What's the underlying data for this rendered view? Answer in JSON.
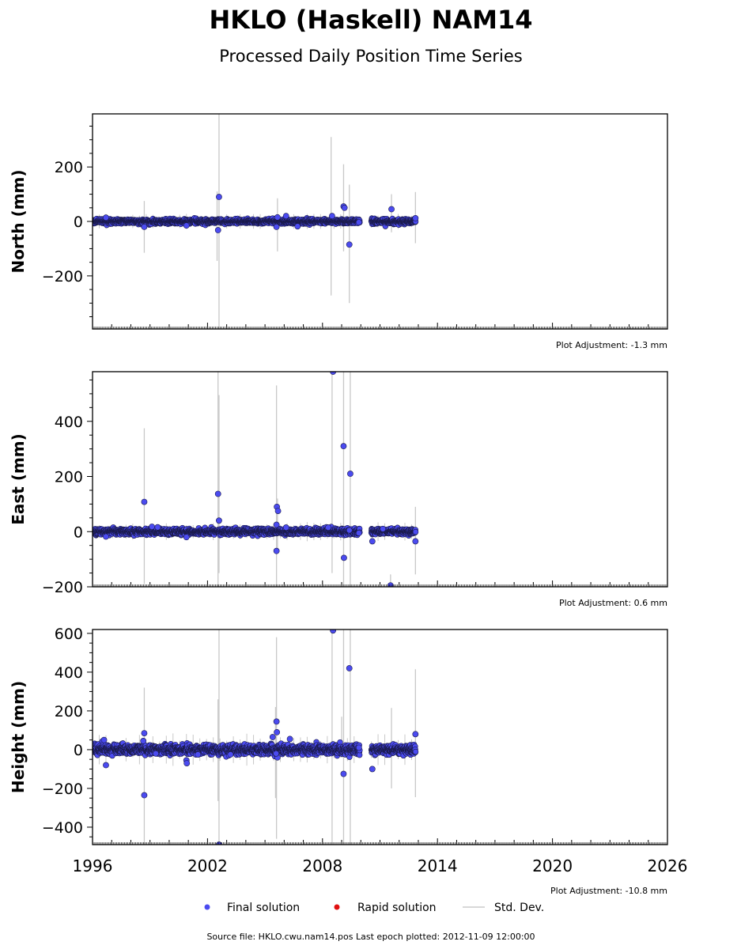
{
  "title": "HKLO (Haskell) NAM14",
  "subtitle": "Processed Daily Position Time Series",
  "footer": "Source file: HKLO.cwu.nam14.pos  Last epoch plotted: 2012-11-09 12:00:00",
  "legend": [
    {
      "label": "Final solution",
      "color": "#4b4bf0",
      "marker": "dot"
    },
    {
      "label": "Rapid solution",
      "color": "#e01010",
      "marker": "dot"
    },
    {
      "label": "Std. Dev.",
      "color": "#cccccc",
      "marker": "line"
    }
  ],
  "colors": {
    "final": "#4b4bf0",
    "final_edge": "#1a1a4a",
    "stddev": "#c8c8c8",
    "rapid": "#e01010"
  },
  "chart_data": [
    {
      "type": "scatter",
      "panel": "north",
      "ylabel": "North (mm)",
      "ylim": [
        -395,
        395
      ],
      "xlim": [
        1996,
        2026
      ],
      "yticks": [
        -200,
        0,
        200
      ],
      "yticklabels": [
        "−200",
        "0",
        "200"
      ],
      "xticks": [],
      "xticklabels": [],
      "adjustment": "Plot Adjustment: -1.3 mm",
      "segments": [
        [
          1996.0,
          2009.95
        ],
        [
          2010.55,
          2012.86
        ]
      ],
      "noise": 4,
      "outliers": [
        {
          "x": 1996.7,
          "y": 14
        },
        {
          "x": 1998.7,
          "y": -20
        },
        {
          "x": 2000.9,
          "y": -15
        },
        {
          "x": 2002.6,
          "y": 90
        },
        {
          "x": 2002.55,
          "y": -32
        },
        {
          "x": 2005.6,
          "y": -20
        },
        {
          "x": 2005.65,
          "y": 15
        },
        {
          "x": 2006.1,
          "y": 20
        },
        {
          "x": 2006.7,
          "y": -18
        },
        {
          "x": 2008.5,
          "y": 20
        },
        {
          "x": 2009.1,
          "y": 55
        },
        {
          "x": 2009.15,
          "y": 50
        },
        {
          "x": 2009.4,
          "y": -85
        },
        {
          "x": 2009.9,
          "y": -3
        },
        {
          "x": 2011.6,
          "y": 45
        },
        {
          "x": 2012.85,
          "y": 12
        }
      ],
      "errorbars": [
        {
          "x": 1998.7,
          "lo": -115,
          "hi": 75
        },
        {
          "x": 2002.6,
          "lo": -400,
          "hi": 400
        },
        {
          "x": 2002.5,
          "lo": -145,
          "hi": 110
        },
        {
          "x": 2005.65,
          "lo": -110,
          "hi": 85
        },
        {
          "x": 2008.45,
          "lo": -272,
          "hi": 310
        },
        {
          "x": 2009.1,
          "lo": -110,
          "hi": 210
        },
        {
          "x": 2009.4,
          "lo": -300,
          "hi": 135
        },
        {
          "x": 2011.6,
          "lo": -40,
          "hi": 100
        },
        {
          "x": 2012.85,
          "lo": -80,
          "hi": 108
        }
      ]
    },
    {
      "type": "scatter",
      "panel": "east",
      "ylabel": "East (mm)",
      "ylim": [
        -200,
        580
      ],
      "xlim": [
        1996,
        2026
      ],
      "yticks": [
        -200,
        0,
        200,
        400
      ],
      "yticklabels": [
        "−200",
        "0",
        "200",
        "400"
      ],
      "xticks": [],
      "xticklabels": [],
      "adjustment": "Plot Adjustment: 0.6 mm",
      "segments": [
        [
          1996.0,
          2009.95
        ],
        [
          2010.55,
          2012.86
        ]
      ],
      "noise": 5,
      "outliers": [
        {
          "x": 1996.7,
          "y": -18
        },
        {
          "x": 1998.7,
          "y": 108
        },
        {
          "x": 1999.1,
          "y": 18
        },
        {
          "x": 1999.4,
          "y": 16
        },
        {
          "x": 2000.9,
          "y": -20
        },
        {
          "x": 2002.55,
          "y": 137
        },
        {
          "x": 2002.6,
          "y": 40
        },
        {
          "x": 2005.6,
          "y": -70
        },
        {
          "x": 2005.62,
          "y": 90
        },
        {
          "x": 2005.68,
          "y": 75
        },
        {
          "x": 2005.6,
          "y": 25
        },
        {
          "x": 2006.1,
          "y": 15
        },
        {
          "x": 2008.55,
          "y": 580
        },
        {
          "x": 2009.1,
          "y": 310
        },
        {
          "x": 2009.12,
          "y": -95
        },
        {
          "x": 2009.45,
          "y": 210
        },
        {
          "x": 2009.4,
          "y": 5
        },
        {
          "x": 2009.9,
          "y": -5
        },
        {
          "x": 2010.6,
          "y": -35
        },
        {
          "x": 2011.15,
          "y": 10
        },
        {
          "x": 2011.55,
          "y": -195
        },
        {
          "x": 2012.85,
          "y": -35
        },
        {
          "x": 2008.3,
          "y": 15
        }
      ],
      "errorbars": [
        {
          "x": 1998.7,
          "lo": -190,
          "hi": 375
        },
        {
          "x": 2002.55,
          "lo": -200,
          "hi": 580
        },
        {
          "x": 2002.6,
          "lo": -150,
          "hi": 495
        },
        {
          "x": 2005.6,
          "lo": -200,
          "hi": 530
        },
        {
          "x": 2005.65,
          "lo": -70,
          "hi": 120
        },
        {
          "x": 2008.5,
          "lo": -150,
          "hi": 580
        },
        {
          "x": 2009.1,
          "lo": -200,
          "hi": 580
        },
        {
          "x": 2009.45,
          "lo": -200,
          "hi": 580
        },
        {
          "x": 2011.55,
          "lo": -200,
          "hi": -155
        },
        {
          "x": 2012.85,
          "lo": -155,
          "hi": 90
        }
      ]
    },
    {
      "type": "scatter",
      "panel": "height",
      "ylabel": "Height (mm)",
      "ylim": [
        -490,
        620
      ],
      "xlim": [
        1996,
        2026
      ],
      "yticks": [
        -400,
        -200,
        0,
        200,
        400,
        600
      ],
      "yticklabels": [
        "−400",
        "−200",
        "0",
        "200",
        "400",
        "600"
      ],
      "xticks": [
        1996,
        2002,
        2008,
        2014,
        2020,
        2026
      ],
      "xticklabels": [
        "1996",
        "2002",
        "2008",
        "2014",
        "2020",
        "2026"
      ],
      "adjustment": "Plot Adjustment: -10.8 mm",
      "segments": [
        [
          1996.0,
          2009.95
        ],
        [
          2010.55,
          2012.86
        ]
      ],
      "noise": 12,
      "outliers": [
        {
          "x": 1996.6,
          "y": 50
        },
        {
          "x": 1996.7,
          "y": -80
        },
        {
          "x": 1998.7,
          "y": 85
        },
        {
          "x": 1998.65,
          "y": 45
        },
        {
          "x": 1998.7,
          "y": -235
        },
        {
          "x": 1999.3,
          "y": -20
        },
        {
          "x": 2000.9,
          "y": -55
        },
        {
          "x": 2000.92,
          "y": -70
        },
        {
          "x": 2001.5,
          "y": -25
        },
        {
          "x": 2002.6,
          "y": -490
        },
        {
          "x": 2003.2,
          "y": -25
        },
        {
          "x": 2005.4,
          "y": 65
        },
        {
          "x": 2005.6,
          "y": 145
        },
        {
          "x": 2005.62,
          "y": 90
        },
        {
          "x": 2005.65,
          "y": -40
        },
        {
          "x": 2005.58,
          "y": -20
        },
        {
          "x": 2006.3,
          "y": 55
        },
        {
          "x": 2008.55,
          "y": 615
        },
        {
          "x": 2009.1,
          "y": -125
        },
        {
          "x": 2009.4,
          "y": 420
        },
        {
          "x": 2009.9,
          "y": 10
        },
        {
          "x": 2010.6,
          "y": -100
        },
        {
          "x": 2012.85,
          "y": 80
        }
      ],
      "errorbars": [
        {
          "x": 1998.7,
          "lo": -490,
          "hi": 320
        },
        {
          "x": 2002.55,
          "lo": -265,
          "hi": 260
        },
        {
          "x": 2002.6,
          "lo": -490,
          "hi": 620
        },
        {
          "x": 2005.55,
          "lo": -250,
          "hi": 220
        },
        {
          "x": 2005.6,
          "lo": -460,
          "hi": 580
        },
        {
          "x": 2008.5,
          "lo": -490,
          "hi": 620
        },
        {
          "x": 2009.0,
          "lo": -40,
          "hi": 170
        },
        {
          "x": 2009.1,
          "lo": -490,
          "hi": 620
        },
        {
          "x": 2009.45,
          "lo": -490,
          "hi": 620
        },
        {
          "x": 2011.6,
          "lo": -200,
          "hi": 215
        },
        {
          "x": 2012.85,
          "lo": -245,
          "hi": 415
        }
      ]
    }
  ]
}
